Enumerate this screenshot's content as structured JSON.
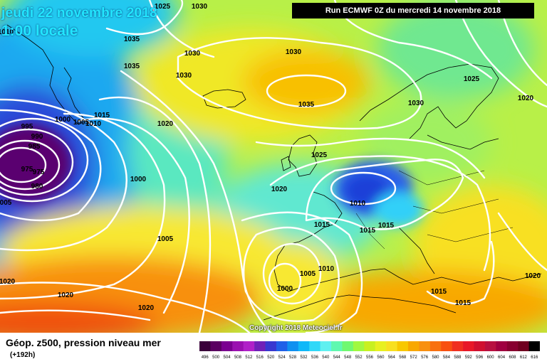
{
  "header": {
    "date_label": "jeudi 22 novembre 2018",
    "time_label": "1:00 locale",
    "run_label": "Run ECMWF 0Z du mercredi 14 novembre 2018"
  },
  "footer": {
    "title": "Géop. z500, pression niveau mer",
    "subtitle": "(+192h)",
    "copyright": "Copyright 2018 Meteociel.fr"
  },
  "legend": {
    "values": [
      "496",
      "500",
      "504",
      "508",
      "512",
      "516",
      "520",
      "524",
      "528",
      "532",
      "536",
      "540",
      "544",
      "548",
      "552",
      "556",
      "560",
      "564",
      "568",
      "572",
      "576",
      "580",
      "584",
      "588",
      "592",
      "596",
      "600",
      "604",
      "608",
      "612",
      "616"
    ],
    "colors": [
      "#3a003a",
      "#5a0060",
      "#7a0090",
      "#9a10b0",
      "#b020c8",
      "#7020b8",
      "#3838d0",
      "#2060e8",
      "#1090f0",
      "#10b8f8",
      "#30d8f8",
      "#60f0f0",
      "#60f8b0",
      "#70f870",
      "#a0f840",
      "#c8f020",
      "#e8f020",
      "#f8e020",
      "#f8c800",
      "#f8a800",
      "#f89010",
      "#f87010",
      "#f85010",
      "#f03020",
      "#e81828",
      "#d01030",
      "#b81040",
      "#a00040",
      "#880030",
      "#700020",
      "#000000"
    ]
  },
  "isobar_labels": [
    {
      "text": "1025"
    },
    {
      "text": "1030"
    },
    {
      "text": "1010"
    },
    {
      "text": "1035"
    },
    {
      "text": "1030"
    },
    {
      "text": "1035"
    },
    {
      "text": "1030"
    },
    {
      "text": "1030"
    },
    {
      "text": "1025"
    },
    {
      "text": "1020"
    },
    {
      "text": "1035"
    },
    {
      "text": "1030"
    },
    {
      "text": "1000"
    },
    {
      "text": "1005"
    },
    {
      "text": "1010"
    },
    {
      "text": "1015"
    },
    {
      "text": "1020"
    },
    {
      "text": "995"
    },
    {
      "text": "990"
    },
    {
      "text": "985"
    },
    {
      "text": "975"
    },
    {
      "text": "975"
    },
    {
      "text": "980"
    },
    {
      "text": "005"
    },
    {
      "text": "1000"
    },
    {
      "text": "1025"
    },
    {
      "text": "1020"
    },
    {
      "text": "1010"
    },
    {
      "text": "1015"
    },
    {
      "text": "1015"
    },
    {
      "text": "1015"
    },
    {
      "text": "1005"
    },
    {
      "text": "1005"
    },
    {
      "text": "1010"
    },
    {
      "text": "1000"
    },
    {
      "text": "1020"
    },
    {
      "text": "1020"
    },
    {
      "text": "1020"
    },
    {
      "text": "1020"
    },
    {
      "text": "1015"
    },
    {
      "text": "1015"
    }
  ]
}
